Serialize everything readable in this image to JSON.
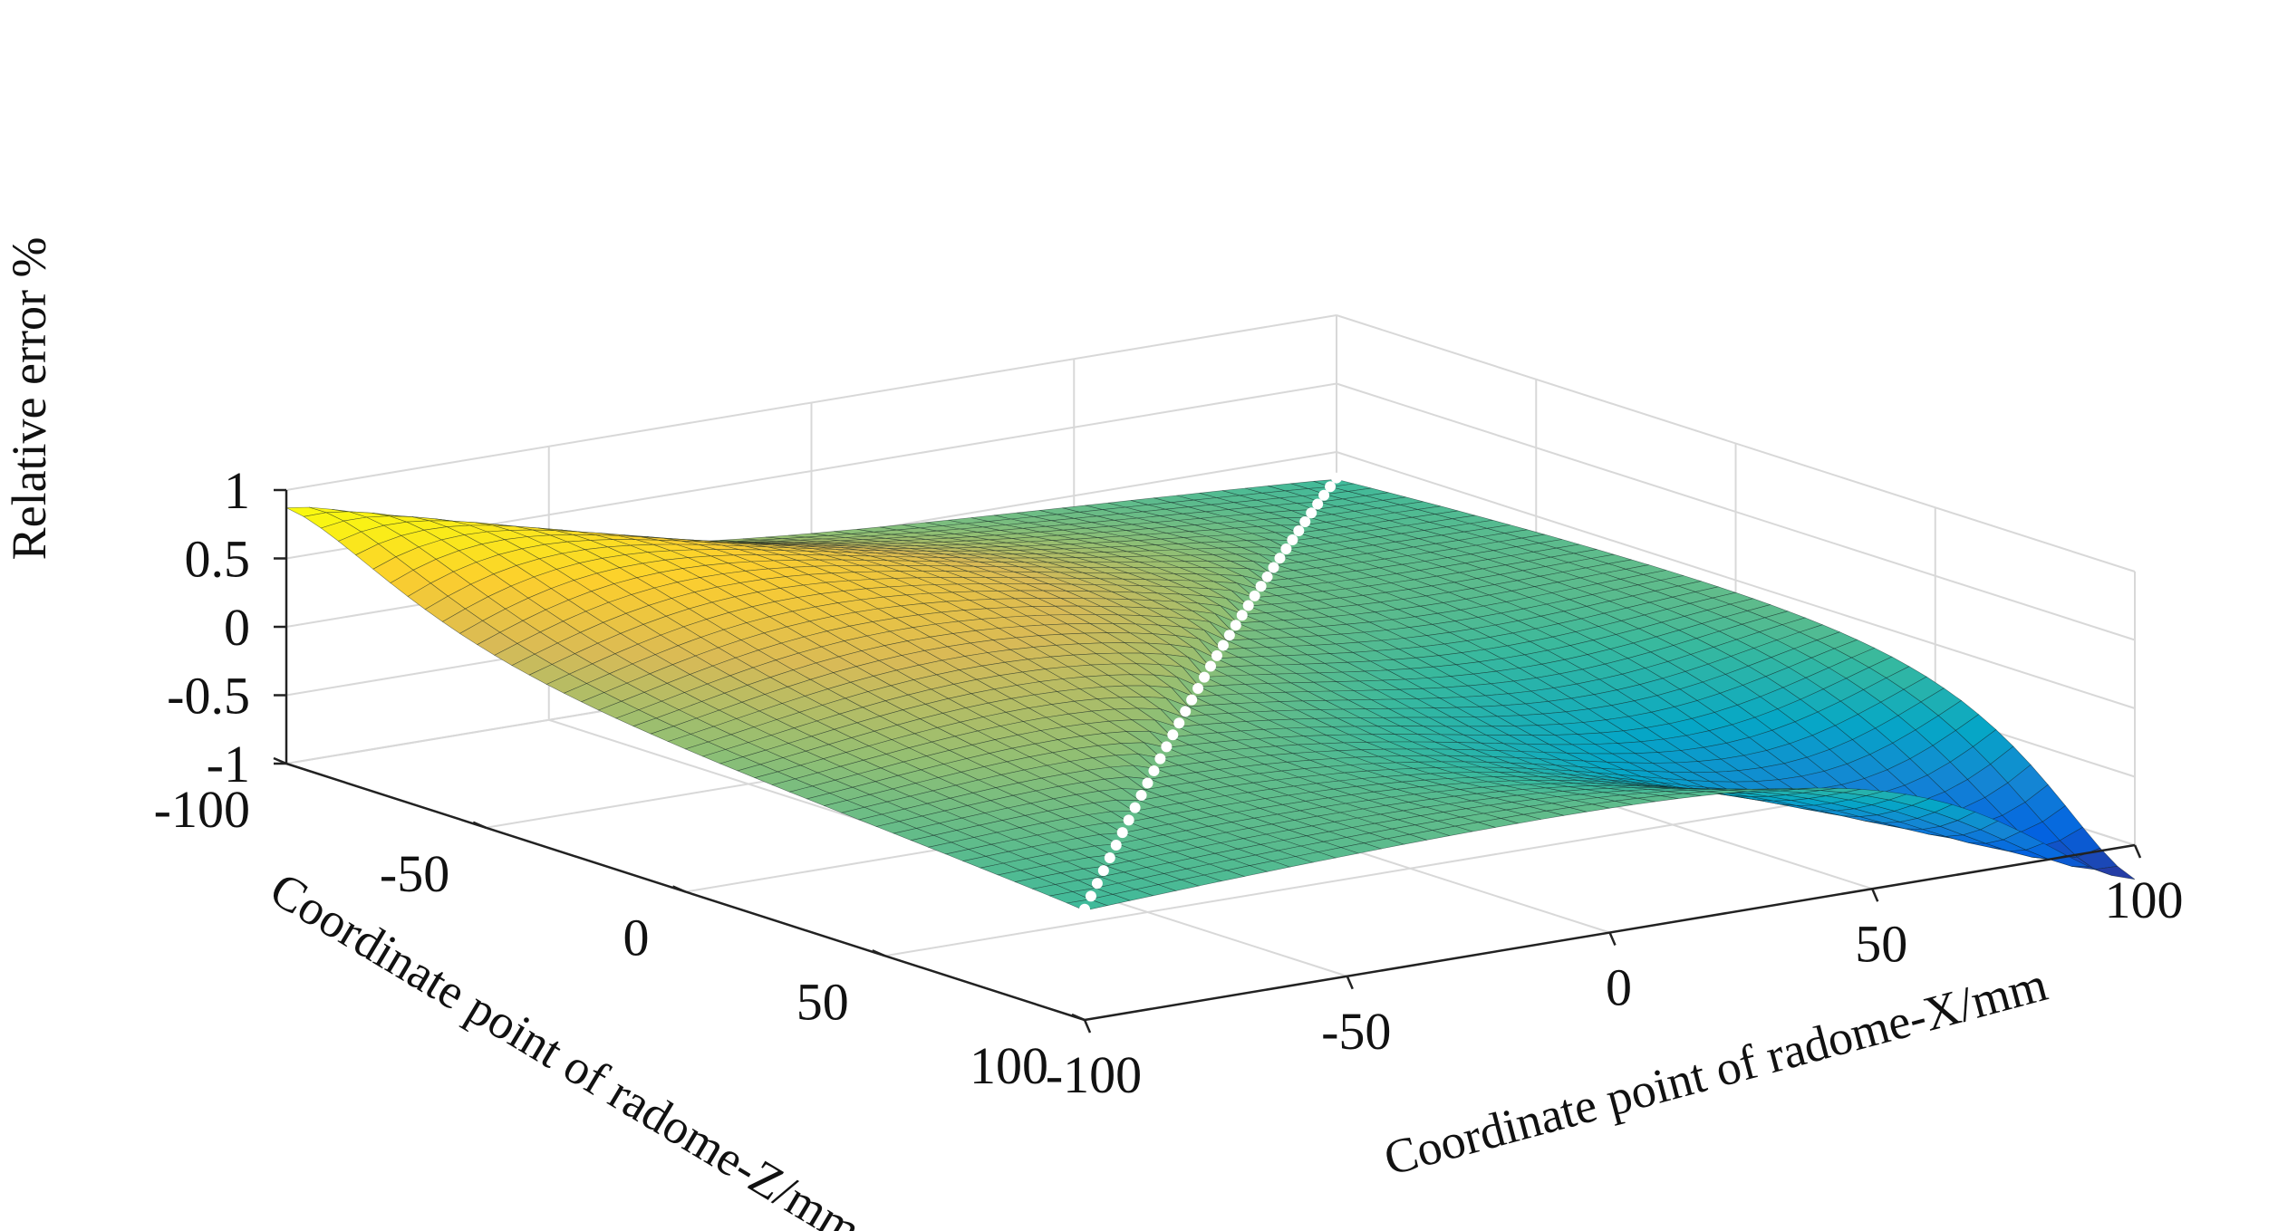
{
  "chart_data": {
    "type": "surface",
    "title": "",
    "xlabel": "Coordinate point of radome-X/mm",
    "ylabel": "Coordinate point of radome-Z/mm",
    "zlabel": "Relative error %",
    "xlim": [
      -100,
      100
    ],
    "ylim": [
      -100,
      100
    ],
    "zlim": [
      -1,
      1
    ],
    "xticks": [
      -100,
      -50,
      0,
      50,
      100
    ],
    "yticks": [
      -100,
      -50,
      0,
      50,
      100
    ],
    "zticks": [
      -1,
      -0.5,
      0,
      0.5,
      1
    ],
    "x_tick_labels": [
      "-100",
      "-50",
      "0",
      "50",
      "100"
    ],
    "y_tick_labels": [
      "-100",
      "-50",
      "0",
      "50",
      "100"
    ],
    "z_tick_labels": [
      "-1",
      "-0.5",
      "0",
      "0.5",
      "1"
    ],
    "grid": true,
    "colormap": "parula",
    "colormap_colors": [
      "#352a87",
      "#0363e1",
      "#1485d4",
      "#06a7c6",
      "#38b99e",
      "#92bf73",
      "#d9ba56",
      "#fcce2e",
      "#f9fb0e"
    ],
    "surface_features": [
      {
        "name": "positive peak",
        "x": -100,
        "z": 100,
        "value": 0.87
      },
      {
        "name": "negative trough",
        "x": 100,
        "z": -100,
        "value": -1.25
      },
      {
        "name": "corner",
        "x": -100,
        "z": -100,
        "value": -0.22
      },
      {
        "name": "corner",
        "x": 100,
        "z": 100,
        "value": -0.18
      }
    ],
    "marked_line": {
      "description": "white markers along X = Z",
      "color": "#ffffff"
    }
  }
}
